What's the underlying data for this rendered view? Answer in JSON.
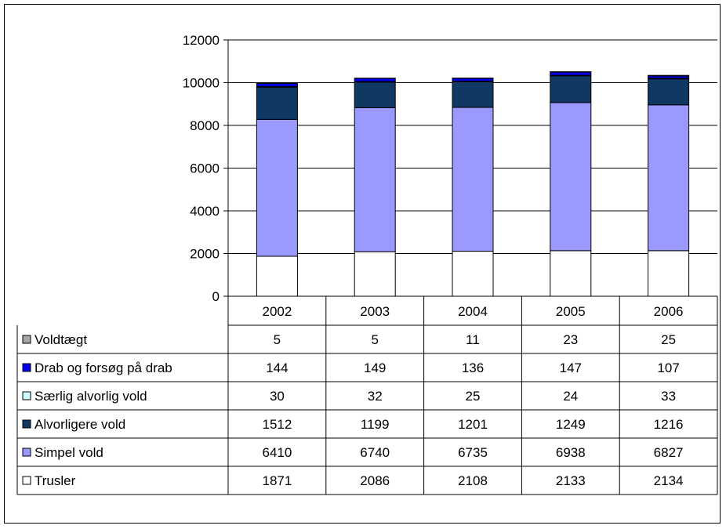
{
  "chart_data": {
    "type": "bar",
    "stacked": true,
    "categories": [
      "2002",
      "2003",
      "2004",
      "2005",
      "2006"
    ],
    "ylim": [
      0,
      12000
    ],
    "yticks": [
      0,
      2000,
      4000,
      6000,
      8000,
      10000,
      12000
    ],
    "grid": true,
    "data_table": true,
    "series": [
      {
        "name": "Trusler",
        "color": "#ffffff",
        "values": [
          1871,
          2086,
          2108,
          2133,
          2134
        ]
      },
      {
        "name": "Simpel vold",
        "color": "#9999ff",
        "values": [
          6410,
          6740,
          6735,
          6938,
          6827
        ]
      },
      {
        "name": "Alvorligere vold",
        "color": "#0f3863",
        "values": [
          1512,
          1199,
          1201,
          1249,
          1216
        ]
      },
      {
        "name": "Særlig alvorlig vold",
        "color": "#ccffff",
        "values": [
          30,
          32,
          25,
          24,
          33
        ]
      },
      {
        "name": "Drab og forsøg på drab",
        "color": "#0000ee",
        "values": [
          144,
          149,
          136,
          147,
          107
        ]
      },
      {
        "name": "Voldtægt",
        "color": "#a6a6a6",
        "values": [
          5,
          5,
          11,
          23,
          25
        ]
      }
    ]
  }
}
